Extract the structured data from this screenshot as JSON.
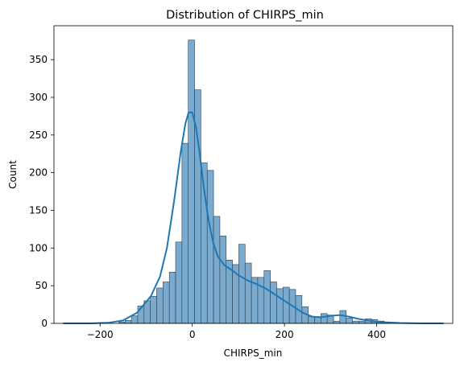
{
  "chart_data": {
    "type": "bar",
    "title": "Distribution of CHIRPS_min",
    "xlabel": "CHIRPS_min",
    "ylabel": "Count",
    "xlim": [
      -300,
      565
    ],
    "ylim": [
      0,
      395
    ],
    "xticks": [
      -200,
      0,
      200,
      400
    ],
    "yticks": [
      0,
      50,
      100,
      150,
      200,
      250,
      300,
      350
    ],
    "bin_width": 13.7,
    "bins": [
      {
        "left": -159.4,
        "count": 2
      },
      {
        "left": -145.7,
        "count": 4
      },
      {
        "left": -132.0,
        "count": 10
      },
      {
        "left": -118.3,
        "count": 23
      },
      {
        "left": -104.6,
        "count": 30
      },
      {
        "left": -90.9,
        "count": 36
      },
      {
        "left": -77.2,
        "count": 47
      },
      {
        "left": -63.5,
        "count": 55
      },
      {
        "left": -49.8,
        "count": 68
      },
      {
        "left": -36.1,
        "count": 108
      },
      {
        "left": -22.4,
        "count": 239
      },
      {
        "left": -8.7,
        "count": 376
      },
      {
        "left": 5.0,
        "count": 310
      },
      {
        "left": 18.7,
        "count": 213
      },
      {
        "left": 32.4,
        "count": 203
      },
      {
        "left": 46.1,
        "count": 142
      },
      {
        "left": 59.8,
        "count": 116
      },
      {
        "left": 73.5,
        "count": 84
      },
      {
        "left": 87.2,
        "count": 78
      },
      {
        "left": 100.9,
        "count": 105
      },
      {
        "left": 114.6,
        "count": 80
      },
      {
        "left": 128.3,
        "count": 61
      },
      {
        "left": 142.0,
        "count": 61
      },
      {
        "left": 155.7,
        "count": 70
      },
      {
        "left": 169.4,
        "count": 55
      },
      {
        "left": 183.1,
        "count": 46
      },
      {
        "left": 196.8,
        "count": 48
      },
      {
        "left": 210.5,
        "count": 45
      },
      {
        "left": 224.2,
        "count": 37
      },
      {
        "left": 237.9,
        "count": 22
      },
      {
        "left": 251.6,
        "count": 9
      },
      {
        "left": 265.3,
        "count": 9
      },
      {
        "left": 279.0,
        "count": 13
      },
      {
        "left": 292.7,
        "count": 11
      },
      {
        "left": 306.4,
        "count": 3
      },
      {
        "left": 320.1,
        "count": 17
      },
      {
        "left": 333.8,
        "count": 7
      },
      {
        "left": 347.5,
        "count": 3
      },
      {
        "left": 361.2,
        "count": 3
      },
      {
        "left": 374.9,
        "count": 6
      },
      {
        "left": 388.6,
        "count": 5
      },
      {
        "left": 402.3,
        "count": 3
      },
      {
        "left": 416.0,
        "count": 1
      }
    ],
    "kde": {
      "x": [
        -280,
        -220,
        -180,
        -150,
        -120,
        -90,
        -70,
        -55,
        -40,
        -25,
        -15,
        -8,
        0,
        8,
        15,
        25,
        35,
        45,
        55,
        70,
        85,
        100,
        120,
        140,
        160,
        180,
        200,
        220,
        240,
        260,
        280,
        300,
        320,
        340,
        360,
        380,
        400,
        450,
        500,
        545
      ],
      "y": [
        0,
        0,
        1,
        4,
        14,
        36,
        62,
        100,
        160,
        228,
        265,
        280,
        280,
        260,
        230,
        180,
        138,
        108,
        89,
        77,
        71,
        64,
        57,
        52,
        46,
        38,
        30,
        22,
        14,
        9,
        8,
        10,
        11,
        9,
        6,
        4,
        2,
        0.5,
        0,
        0
      ]
    },
    "colors": {
      "bar_fill": "#7aabce",
      "bar_edge": "#2d3f4f",
      "kde_line": "#1f77b4",
      "axis": "#000000"
    }
  }
}
